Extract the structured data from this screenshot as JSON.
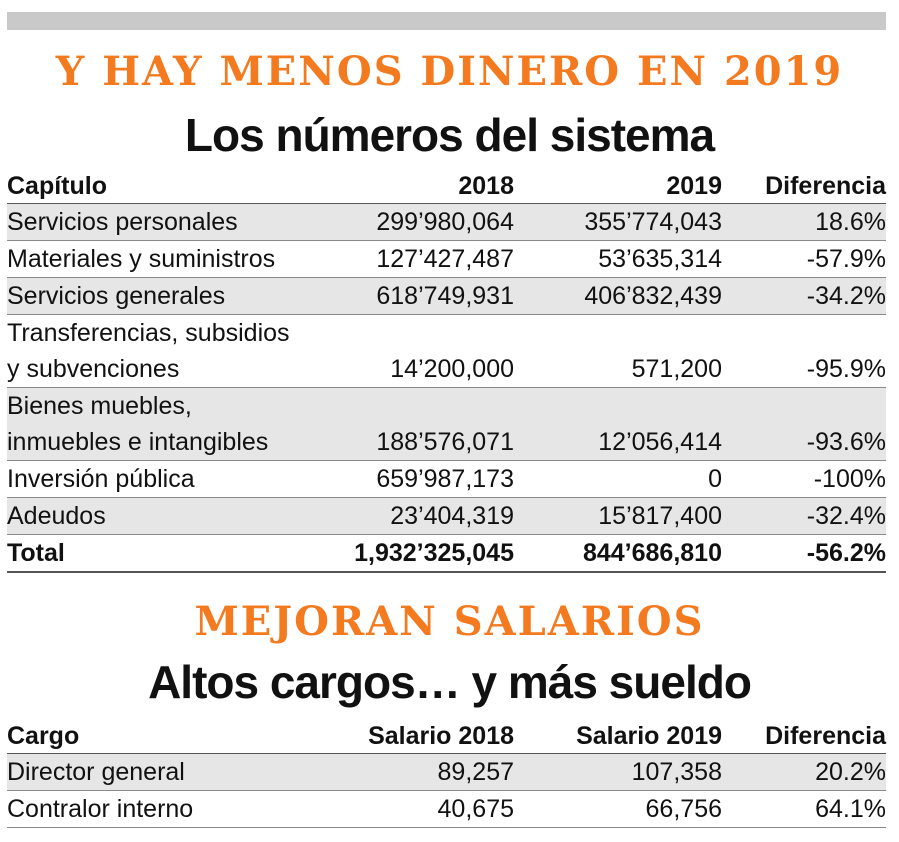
{
  "section1": {
    "kicker": "Y HAY MENOS DINERO EN 2019",
    "headline": "Los números del sistema",
    "table": {
      "headers": [
        "Capítulo",
        "2018",
        "2019",
        "Diferencia"
      ],
      "rows": [
        {
          "label_lines": [
            "Servicios personales"
          ],
          "y2018": "299’980,064",
          "y2019": "355’774,043",
          "diff": "18.6%"
        },
        {
          "label_lines": [
            "Materiales y suministros"
          ],
          "y2018": "127’427,487",
          "y2019": "53’635,314",
          "diff": "-57.9%"
        },
        {
          "label_lines": [
            "Servicios generales"
          ],
          "y2018": "618’749,931",
          "y2019": "406’832,439",
          "diff": "-34.2%"
        },
        {
          "label_lines": [
            "Transferencias, subsidios",
            "y subvenciones"
          ],
          "y2018": "14’200,000",
          "y2019": "571,200",
          "diff": "-95.9%"
        },
        {
          "label_lines": [
            "Bienes muebles,",
            "inmuebles e intangibles"
          ],
          "y2018": "188’576,071",
          "y2019": "12’056,414",
          "diff": "-93.6%"
        },
        {
          "label_lines": [
            "Inversión pública"
          ],
          "y2018": "659’987,173",
          "y2019": "0",
          "diff": "-100%"
        },
        {
          "label_lines": [
            "Adeudos"
          ],
          "y2018": "23’404,319",
          "y2019": "15’817,400",
          "diff": "-32.4%"
        }
      ],
      "total": {
        "label": "Total",
        "y2018": "1,932’325,045",
        "y2019": "844’686,810",
        "diff": "-56.2%"
      }
    }
  },
  "section2": {
    "kicker": "MEJORAN SALARIOS",
    "headline": "Altos cargos… y más sueldo",
    "table": {
      "headers": [
        "Cargo",
        "Salario 2018",
        "Salario 2019",
        "Diferencia"
      ],
      "rows": [
        {
          "label": "Director general",
          "s2018": "89,257",
          "s2019": "107,358",
          "diff": "20.2%"
        },
        {
          "label": "Contralor interno",
          "s2018": "40,675",
          "s2019": "66,756",
          "diff": "64.1%"
        }
      ]
    }
  },
  "colors": {
    "accent": "#f47a20",
    "row_shade": "#e6e6e6",
    "top_bar": "#c9c9c9"
  }
}
